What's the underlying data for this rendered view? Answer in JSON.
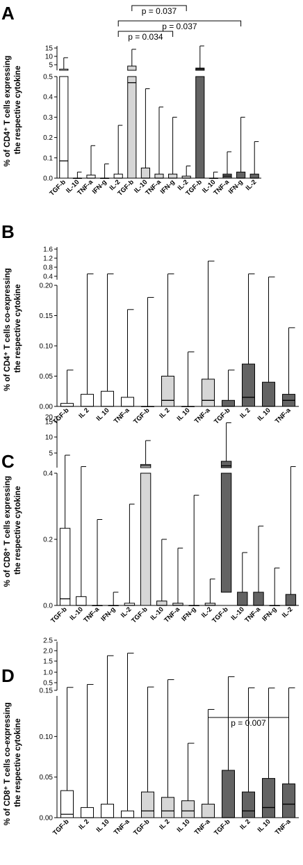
{
  "colors": {
    "group1": "#ffffff",
    "group2": "#d6d6d6",
    "group3": "#636363",
    "stroke": "#000000"
  },
  "chart_data": [
    {
      "panel": "A",
      "type": "box",
      "ylabel": [
        "% of CD4⁺ T cells expressing",
        "the respective cytokine"
      ],
      "ticks_lower": [
        "0.0",
        "0.1",
        "0.2",
        "0.3",
        "0.4",
        "0.5"
      ],
      "ticks_upper": [
        "5",
        "10",
        "15"
      ],
      "ylim_lower": [
        0,
        0.5
      ],
      "ylim_upper": [
        0.5,
        15
      ],
      "categories": [
        "TGF-b",
        "IL-10",
        "TNF-a",
        "IFN-g",
        "IL-2",
        "TGF-b",
        "IL-10",
        "TNF-a",
        "IFN-g",
        "IL-2",
        "TGF-b",
        "IL-10",
        "TNF-a",
        "IFN-g",
        "IL-2"
      ],
      "groups": [
        1,
        1,
        1,
        1,
        1,
        2,
        2,
        2,
        2,
        2,
        3,
        3,
        3,
        3,
        3
      ],
      "boxes": [
        {
          "min": 0,
          "q1": 0,
          "median": 0.085,
          "q3": 1.2,
          "max": 8
        },
        {
          "min": 0,
          "q1": 0,
          "median": 0,
          "q3": 0,
          "max": 0.03
        },
        {
          "min": 0,
          "q1": 0,
          "median": 0,
          "q3": 0.015,
          "max": 0.16
        },
        {
          "min": 0,
          "q1": 0,
          "median": 0,
          "q3": 0,
          "max": 0.07
        },
        {
          "min": 0,
          "q1": 0,
          "median": 0,
          "q3": 0.02,
          "max": 0.26
        },
        {
          "min": 0,
          "q1": 0,
          "median": 0.47,
          "q3": 3,
          "max": 13
        },
        {
          "min": 0,
          "q1": 0,
          "median": 0,
          "q3": 0.05,
          "max": 0.44
        },
        {
          "min": 0,
          "q1": 0,
          "median": 0,
          "q3": 0.02,
          "max": 0.35
        },
        {
          "min": 0,
          "q1": 0,
          "median": 0,
          "q3": 0.02,
          "max": 0.3
        },
        {
          "min": 0,
          "q1": 0,
          "median": 0,
          "q3": 0.01,
          "max": 0.06
        },
        {
          "min": 0,
          "q1": 0,
          "median": 1.3,
          "q3": 1.8,
          "max": 15
        },
        {
          "min": 0,
          "q1": 0,
          "median": 0,
          "q3": 0,
          "max": 0.03
        },
        {
          "min": 0,
          "q1": 0,
          "median": 0.01,
          "q3": 0.02,
          "max": 0.13
        },
        {
          "min": 0,
          "q1": 0,
          "median": 0,
          "q3": 0.03,
          "max": 0.3
        },
        {
          "min": 0,
          "q1": 0,
          "median": 0,
          "q3": 0.02,
          "max": 0.18
        }
      ],
      "annotations": [
        {
          "text": "p = 0.037",
          "from": 5,
          "to": 9
        },
        {
          "text": "p = 0.037",
          "from": 4,
          "to": 13
        },
        {
          "text": "p = 0.034",
          "from": 4,
          "to": 8
        }
      ]
    },
    {
      "panel": "B",
      "type": "box",
      "ylabel": [
        "% of CD4⁺ T cells co-expressing",
        "the respective cytokine"
      ],
      "ticks_lower": [
        "0.00",
        "0.05",
        "0.10",
        "0.15",
        "0.20"
      ],
      "ticks_upper": [
        "0.4",
        "0.8",
        "1.2",
        "1.6"
      ],
      "ylim_lower": [
        0,
        0.2
      ],
      "ylim_upper": [
        0.2,
        1.6
      ],
      "categories": [
        "TGF-b",
        "IL 2",
        "IL 10",
        "TNF-a",
        "TGF-b",
        "IL 2",
        "IL 10",
        "TNF-a",
        "TGF-b",
        "IL 2",
        "IL 10",
        "TNF-a"
      ],
      "groups": [
        1,
        1,
        1,
        1,
        2,
        2,
        2,
        2,
        3,
        3,
        3,
        3
      ],
      "boxes": [
        {
          "min": 0,
          "q1": 0,
          "median": 0,
          "q3": 0.005,
          "max": 0.06
        },
        {
          "min": 0,
          "q1": 0,
          "median": 0,
          "q3": 0.02,
          "max": 0.45
        },
        {
          "min": 0,
          "q1": 0,
          "median": 0,
          "q3": 0.025,
          "max": 0.45
        },
        {
          "min": 0,
          "q1": 0,
          "median": 0,
          "q3": 0.015,
          "max": 0.16
        },
        {
          "min": 0,
          "q1": 0,
          "median": 0,
          "q3": 0,
          "max": 0.18
        },
        {
          "min": 0,
          "q1": 0,
          "median": 0.01,
          "q3": 0.05,
          "max": 0.45
        },
        {
          "min": 0,
          "q1": 0,
          "median": 0,
          "q3": 0,
          "max": 0.09
        },
        {
          "min": 0,
          "q1": 0,
          "median": 0.01,
          "q3": 0.045,
          "max": 1.0
        },
        {
          "min": 0,
          "q1": 0,
          "median": 0,
          "q3": 0.01,
          "max": 0.06
        },
        {
          "min": 0,
          "q1": 0,
          "median": 0.015,
          "q3": 0.07,
          "max": 0.45
        },
        {
          "min": 0,
          "q1": 0,
          "median": 0,
          "q3": 0.04,
          "max": 0.32
        },
        {
          "min": 0,
          "q1": 0,
          "median": 0.01,
          "q3": 0.02,
          "max": 0.13
        }
      ],
      "annotations": []
    },
    {
      "panel": "C",
      "type": "box",
      "ylabel": [
        "% of CD8⁺ T cells expressing",
        "the respective cytokine"
      ],
      "ticks_lower": [
        "0.0",
        "0.2",
        "0.4"
      ],
      "ticks_upper": [
        "5",
        "10",
        "15",
        "20"
      ],
      "ylim_lower": [
        0,
        0.6
      ],
      "ylim_upper": [
        0.6,
        20
      ],
      "categories": [
        "TGF-b",
        "IL-10",
        "TNF-a",
        "IFN-g",
        "IL-2",
        "TGF-b",
        "IL-10",
        "TNF-a",
        "IFN-g",
        "IL-2",
        "TGF-b",
        "IL-10",
        "TNF-a",
        "IFN-g",
        "IL-2"
      ],
      "groups": [
        1,
        1,
        1,
        1,
        1,
        2,
        2,
        2,
        2,
        2,
        3,
        3,
        3,
        3,
        3
      ],
      "boxes": [
        {
          "min": 0,
          "q1": 0,
          "median": 0.03,
          "q3": 0.35,
          "max": 5.3
        },
        {
          "min": 0,
          "q1": 0,
          "median": 0,
          "q3": 0.04,
          "max": 1
        },
        {
          "min": 0,
          "q1": 0,
          "median": 0,
          "q3": 0,
          "max": 0.39
        },
        {
          "min": 0,
          "q1": 0,
          "median": 0,
          "q3": 0,
          "max": 0.06
        },
        {
          "min": 0,
          "q1": 0,
          "median": 0,
          "q3": 0.01,
          "max": 0.46
        },
        {
          "min": 0,
          "q1": 0,
          "median": 1.3,
          "q3": 1.8,
          "max": 10.8
        },
        {
          "min": 0,
          "q1": 0,
          "median": 0,
          "q3": 0.02,
          "max": 0.3
        },
        {
          "min": 0,
          "q1": 0,
          "median": 0,
          "q3": 0.01,
          "max": 0.26
        },
        {
          "min": 0,
          "q1": 0,
          "median": 0,
          "q3": 0,
          "max": 0.5
        },
        {
          "min": 0,
          "q1": 0,
          "median": 0,
          "q3": 0.01,
          "max": 0.12
        },
        {
          "min": 0.06,
          "q1": 0.06,
          "median": 1.3,
          "q3": 3,
          "max": 17.5
        },
        {
          "min": 0,
          "q1": 0,
          "median": 0,
          "q3": 0.06,
          "max": 0.24
        },
        {
          "min": 0,
          "q1": 0,
          "median": 0,
          "q3": 0.06,
          "max": 0.36
        },
        {
          "min": 0,
          "q1": 0,
          "median": 0,
          "q3": 0,
          "max": 0.17
        },
        {
          "min": 0,
          "q1": 0,
          "median": 0,
          "q3": 0.05,
          "max": 1
        }
      ],
      "annotations": []
    },
    {
      "panel": "D",
      "type": "box",
      "ylabel": [
        "% of CD8⁺ T cells co-expressing",
        "the respective cytokine"
      ],
      "ticks_lower": [
        "0.00",
        "0.05",
        "0.10",
        "0.15"
      ],
      "ticks_upper": [
        "0.5",
        "1.0",
        "1.5",
        "2.0",
        "2.5"
      ],
      "ylim_lower": [
        0,
        0.18
      ],
      "ylim_upper": [
        0.18,
        2.5
      ],
      "categories": [
        "TGF-b",
        "IL 2",
        "IL 10",
        "TNF-a",
        "TGF-b",
        "IL 2",
        "IL 10",
        "TNF-a",
        "TGF-b",
        "IL 2",
        "IL 10",
        "TNF-a"
      ],
      "groups": [
        1,
        1,
        1,
        1,
        2,
        2,
        2,
        2,
        3,
        3,
        3,
        3
      ],
      "boxes": [
        {
          "min": 0,
          "q1": 0,
          "median": 0.005,
          "q3": 0.04,
          "max": 0.32
        },
        {
          "min": 0,
          "q1": 0,
          "median": 0,
          "q3": 0.015,
          "max": 0.46
        },
        {
          "min": 0,
          "q1": 0,
          "median": 0,
          "q3": 0.02,
          "max": 1.83
        },
        {
          "min": 0,
          "q1": 0,
          "median": 0,
          "q3": 0.01,
          "max": 1.95
        },
        {
          "min": 0,
          "q1": 0,
          "median": 0.01,
          "q3": 0.038,
          "max": 0.34
        },
        {
          "min": 0,
          "q1": 0,
          "median": 0.01,
          "q3": 0.03,
          "max": 0.69
        },
        {
          "min": 0,
          "q1": 0,
          "median": 0.01,
          "q3": 0.025,
          "max": 0.11
        },
        {
          "min": 0,
          "q1": 0,
          "median": 0,
          "q3": 0.02,
          "max": 0.16
        },
        {
          "min": 0,
          "q1": 0,
          "median": 0,
          "q3": 0.07,
          "max": 0.83
        },
        {
          "min": 0,
          "q1": 0,
          "median": 0.01,
          "q3": 0.038,
          "max": 0.3
        },
        {
          "min": 0,
          "q1": 0,
          "median": 0.015,
          "q3": 0.058,
          "max": 0.29
        },
        {
          "min": 0,
          "q1": 0,
          "median": 0.02,
          "q3": 0.05,
          "max": 0.3
        }
      ],
      "annotations": [
        {
          "text": "p = 0.007",
          "from": 7,
          "to": 11
        }
      ]
    }
  ]
}
